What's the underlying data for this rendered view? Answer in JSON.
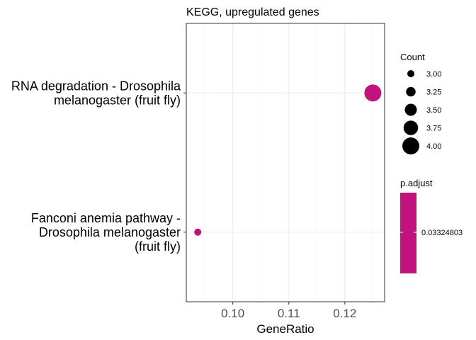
{
  "chart_data": {
    "type": "scatter",
    "title": "KEGG, upregulated genes",
    "xlabel": "GeneRatio",
    "ylabel": "",
    "xlim": [
      0.0917,
      0.1271
    ],
    "xticks": [
      0.1,
      0.11,
      0.12
    ],
    "xtick_labels": [
      "0.10",
      "0.11",
      "0.12"
    ],
    "grid": true,
    "categories": [
      "RNA degradation - Drosophila melanogaster (fruit fly)",
      "Fanconi anemia pathway - Drosophila melanogaster (fruit fly)"
    ],
    "category_lines": [
      [
        "RNA degradation - Drosophila",
        "melanogaster (fruit fly)"
      ],
      [
        "Fanconi anemia pathway -",
        "Drosophila melanogaster",
        "(fruit fly)"
      ]
    ],
    "points": [
      {
        "category": "RNA degradation - Drosophila melanogaster (fruit fly)",
        "x": 0.125,
        "count": 4,
        "p_adjust": 0.03324803
      },
      {
        "category": "Fanconi anemia pathway - Drosophila melanogaster (fruit fly)",
        "x": 0.09375,
        "count": 3,
        "p_adjust": 0.03324803
      }
    ],
    "point_color": "#c2127e",
    "size_legend": {
      "title": "Count",
      "values": [
        3.0,
        3.25,
        3.5,
        3.75,
        4.0
      ],
      "labels": [
        "3.00",
        "3.25",
        "3.50",
        "3.75",
        "4.00"
      ]
    },
    "color_legend": {
      "title": "p.adjust",
      "labels": [
        "0.03324803"
      ],
      "color": "#c2127e"
    }
  }
}
